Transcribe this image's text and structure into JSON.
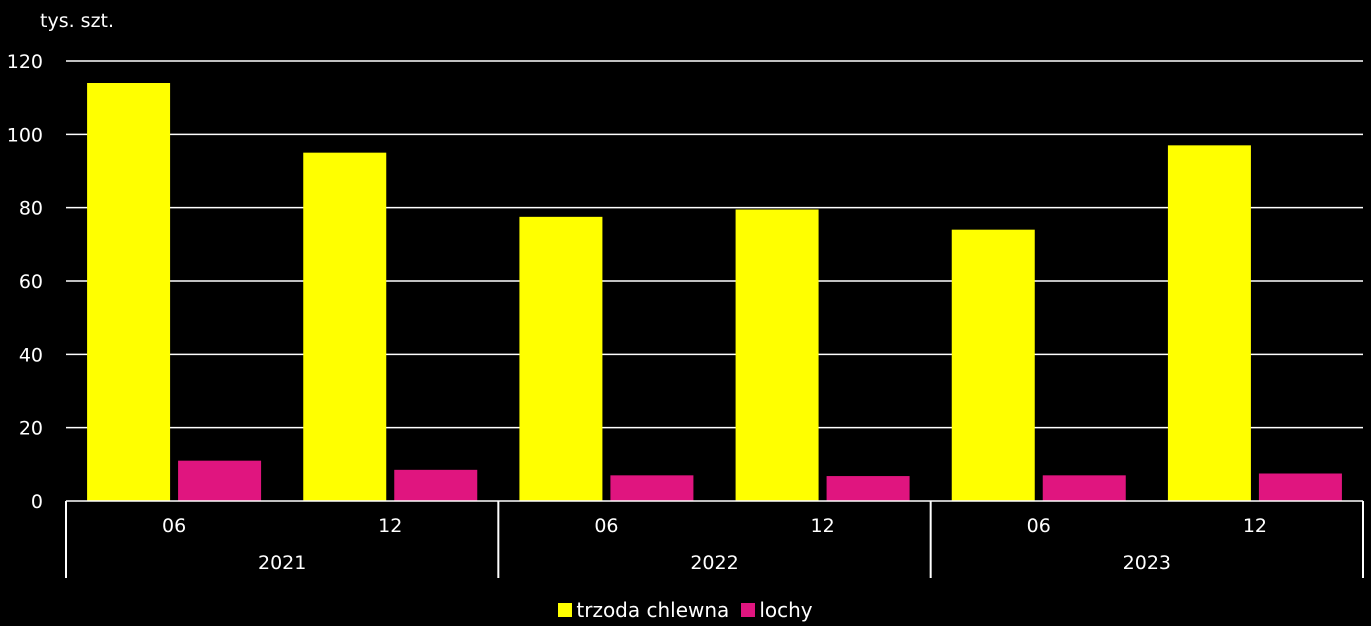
{
  "chart_data": {
    "type": "bar",
    "unit_label": "tys. szt.",
    "categories": [
      "06",
      "12",
      "06",
      "12",
      "06",
      "12"
    ],
    "groups": [
      {
        "label": "2021",
        "span": 2
      },
      {
        "label": "2022",
        "span": 2
      },
      {
        "label": "2023",
        "span": 2
      }
    ],
    "series": [
      {
        "name": "trzoda chlewna",
        "color": "#ffff00",
        "values": [
          114,
          95,
          77.5,
          79.5,
          74,
          97
        ]
      },
      {
        "name": "lochy",
        "color": "#e0157f",
        "values": [
          11,
          8.5,
          7,
          6.8,
          7,
          7.5
        ]
      }
    ],
    "ylim": [
      0,
      120
    ],
    "yticks": [
      0,
      20,
      40,
      60,
      80,
      100,
      120
    ],
    "grid": true,
    "legend_position": "bottom"
  }
}
